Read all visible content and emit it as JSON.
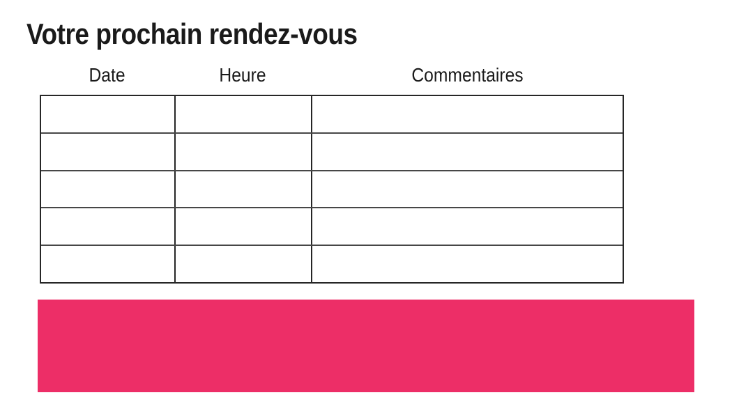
{
  "page": {
    "title": "Votre prochain rendez-vous",
    "background_color": "#ffffff",
    "text_color": "#1a1a1a"
  },
  "appointment_table": {
    "column_headers": [
      "Date",
      "Heure",
      "Commentaires"
    ],
    "rows": [
      [
        "",
        "",
        ""
      ],
      [
        "",
        "",
        ""
      ],
      [
        "",
        "",
        ""
      ],
      [
        "",
        "",
        ""
      ],
      [
        "",
        "",
        ""
      ]
    ],
    "border_color": "#262626"
  },
  "highlight_banner": {
    "text": "",
    "color": "#ed2e67"
  }
}
